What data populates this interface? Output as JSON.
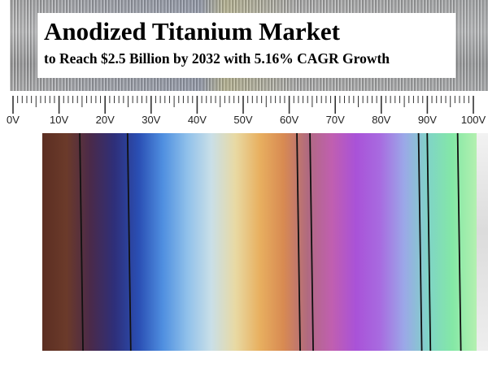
{
  "title": "Anodized Titanium Market",
  "subtitle": "to Reach $2.5 Billion by 2032 with 5.16% CAGR Growth",
  "ruler": {
    "ticks": [
      {
        "label": "0V",
        "voltage": 0
      },
      {
        "label": "10V",
        "voltage": 10
      },
      {
        "label": "20V",
        "voltage": 20
      },
      {
        "label": "30V",
        "voltage": 30
      },
      {
        "label": "40V",
        "voltage": 40
      },
      {
        "label": "50V",
        "voltage": 50
      },
      {
        "label": "60V",
        "voltage": 60
      },
      {
        "label": "70V",
        "voltage": 70
      },
      {
        "label": "80V",
        "voltage": 80
      },
      {
        "label": "90V",
        "voltage": 90
      },
      {
        "label": "100V",
        "voltage": 100
      }
    ]
  },
  "spectrum": {
    "colors": [
      "#5b2e22",
      "#6b3a2a",
      "#4a2a4a",
      "#2e2f7a",
      "#2a4fb4",
      "#4f8fe0",
      "#8fc0ea",
      "#c9dfe8",
      "#e8d9a3",
      "#e8b060",
      "#d88a52",
      "#b06a80",
      "#c05fb0",
      "#a952d8",
      "#a86be0",
      "#9ba8e8",
      "#7fd4c6",
      "#84e8a6",
      "#b4f0b0"
    ],
    "divider_voltages": [
      9,
      20,
      59,
      62,
      87,
      89,
      96
    ]
  },
  "colors": {
    "background": "#ffffff",
    "text": "#000000",
    "divider": "#111111"
  }
}
